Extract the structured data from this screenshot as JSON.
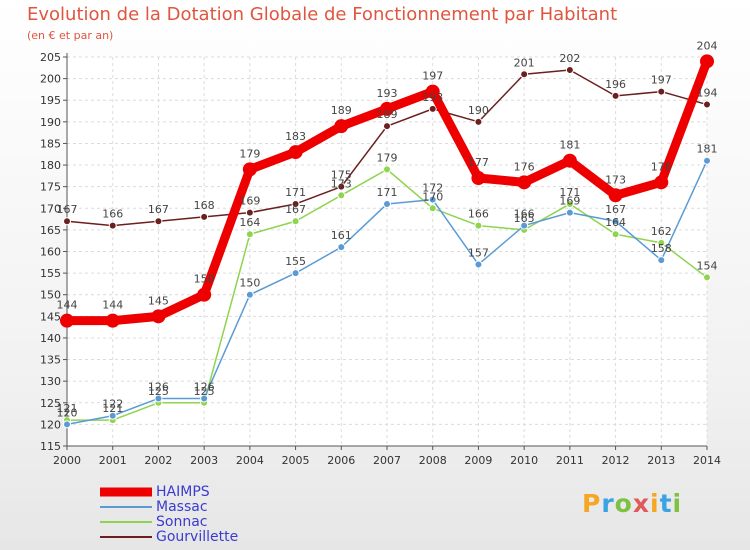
{
  "title": "Evolution de la Dotation Globale de Fonctionnement par Habitant",
  "subtitle": "(en € et par an)",
  "logo": {
    "letters": [
      "P",
      "r",
      "o",
      "x",
      "i",
      "t",
      "i"
    ],
    "colors": [
      "#f5a623",
      "#3aa3e6",
      "#7dc242",
      "#e05a5a",
      "#f5a623",
      "#3aa3e6",
      "#7dc242"
    ]
  },
  "chart_data": {
    "type": "line",
    "title": "Evolution de la Dotation Globale de Fonctionnement par Habitant",
    "subtitle": "(en € et par an)",
    "x": [
      "2000",
      "2001",
      "2002",
      "2003",
      "2004",
      "2005",
      "2006",
      "2007",
      "2008",
      "2009",
      "2010",
      "2011",
      "2012",
      "2013",
      "2014"
    ],
    "ylim": [
      115,
      205
    ],
    "yticks": [
      115,
      120,
      125,
      130,
      135,
      140,
      145,
      150,
      155,
      160,
      165,
      170,
      175,
      180,
      185,
      190,
      195,
      200,
      205
    ],
    "grid": true,
    "legend_position": "bottom-left",
    "series": [
      {
        "name": "Gourvillette",
        "color": "#6b1f1f",
        "values": [
          167,
          166,
          167,
          168,
          169,
          171,
          175,
          189,
          193,
          190,
          201,
          202,
          196,
          197,
          194
        ]
      },
      {
        "name": "Sonnac",
        "color": "#8ed44f",
        "values": [
          121,
          121,
          125,
          125,
          164,
          167,
          173,
          179,
          170,
          166,
          165,
          171,
          164,
          162,
          154
        ]
      },
      {
        "name": "Massac",
        "color": "#5b9bd5",
        "values": [
          120,
          122,
          126,
          126,
          150,
          155,
          161,
          171,
          172,
          157,
          166,
          169,
          167,
          158,
          181
        ]
      },
      {
        "name": "HAIMPS",
        "color": "#ee0000",
        "values": [
          144,
          144,
          145,
          150,
          179,
          183,
          189,
          193,
          197,
          177,
          176,
          181,
          173,
          176,
          204
        ]
      }
    ],
    "legend": [
      "HAIMPS",
      "Massac",
      "Sonnac",
      "Gourvillette"
    ]
  }
}
